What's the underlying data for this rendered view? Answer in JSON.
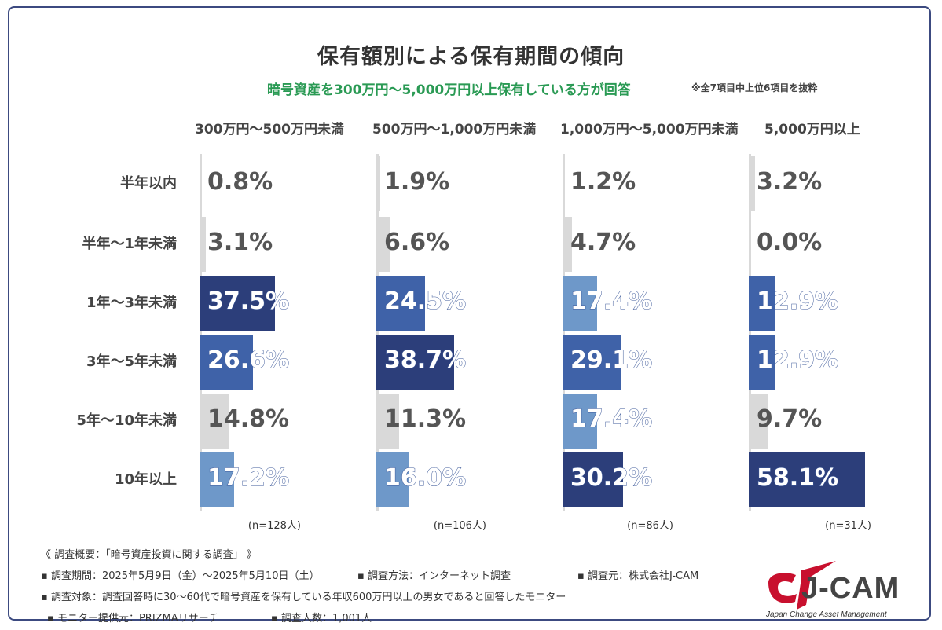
{
  "title": "保有額別による保有期間の傾向",
  "subtitle": "暗号資産を300万円～5,000万円以上保有している方が回答",
  "note": "※全7項目中上位6項目を抜粋",
  "footer": {
    "line1": "《 調査概要：「暗号資産投資に関する調査」 》",
    "line2a": "▪ 調査期間：2025年5月9日（金）～2025年5月10日（土）",
    "line2b": "▪ 調査方法：インターネット調査",
    "line2c": "▪ 調査元：株式会社J-CAM",
    "line3": "▪ 調査対象：調査回答時に30～60代で暗号資産を保有している年収600万円以上の男女であると回答したモニター",
    "line4a": "▪ モニター提供元：PRIZMAリサーチ",
    "line4b": "▪ 調査人数：1,001人"
  },
  "logo": {
    "text": "J-CAM",
    "sub": "Japan Change Asset Management"
  },
  "colors": {
    "dark": "#2c3e7a",
    "mid": "#3f62a8",
    "light": "#6e98c9",
    "grey": "#d9d9d9"
  },
  "chart_data": {
    "type": "bar",
    "title": "保有額別による保有期間の傾向",
    "categories": [
      "半年以内",
      "半年～1年未満",
      "1年～3年未満",
      "3年～5年未満",
      "5年～10年未満",
      "10年以上"
    ],
    "unit": "%",
    "series": [
      {
        "name": "300万円～500万円未満",
        "n": "(n=128人)",
        "values": [
          0.8,
          3.1,
          37.5,
          26.6,
          14.8,
          17.2
        ],
        "labels": [
          "0.8%",
          "3.1%",
          "37.5%",
          "26.6%",
          "14.8%",
          "17.2%"
        ],
        "shades": [
          "grey",
          "grey",
          "dark",
          "mid",
          "grey",
          "light"
        ]
      },
      {
        "name": "500万円～1,000万円未満",
        "n": "(n=106人)",
        "values": [
          1.9,
          6.6,
          24.5,
          38.7,
          11.3,
          16.0
        ],
        "labels": [
          "1.9%",
          "6.6%",
          "24.5%",
          "38.7%",
          "11.3%",
          "16.0%"
        ],
        "shades": [
          "grey",
          "grey",
          "mid",
          "dark",
          "grey",
          "light"
        ]
      },
      {
        "name": "1,000万円～5,000万円未満",
        "n": "(n=86人)",
        "values": [
          1.2,
          4.7,
          17.4,
          29.1,
          17.4,
          30.2
        ],
        "labels": [
          "1.2%",
          "4.7%",
          "17.4%",
          "29.1%",
          "17.4%",
          "30.2%"
        ],
        "shades": [
          "grey",
          "grey",
          "light",
          "mid",
          "light",
          "dark"
        ]
      },
      {
        "name": "5,000万円以上",
        "n": "(n=31人)",
        "values": [
          3.2,
          0.0,
          12.9,
          12.9,
          9.7,
          58.1
        ],
        "labels": [
          "3.2%",
          "0.0%",
          "12.9%",
          "12.9%",
          "9.7%",
          "58.1%"
        ],
        "shades": [
          "grey",
          "grey",
          "mid",
          "mid",
          "grey",
          "dark"
        ]
      }
    ]
  }
}
